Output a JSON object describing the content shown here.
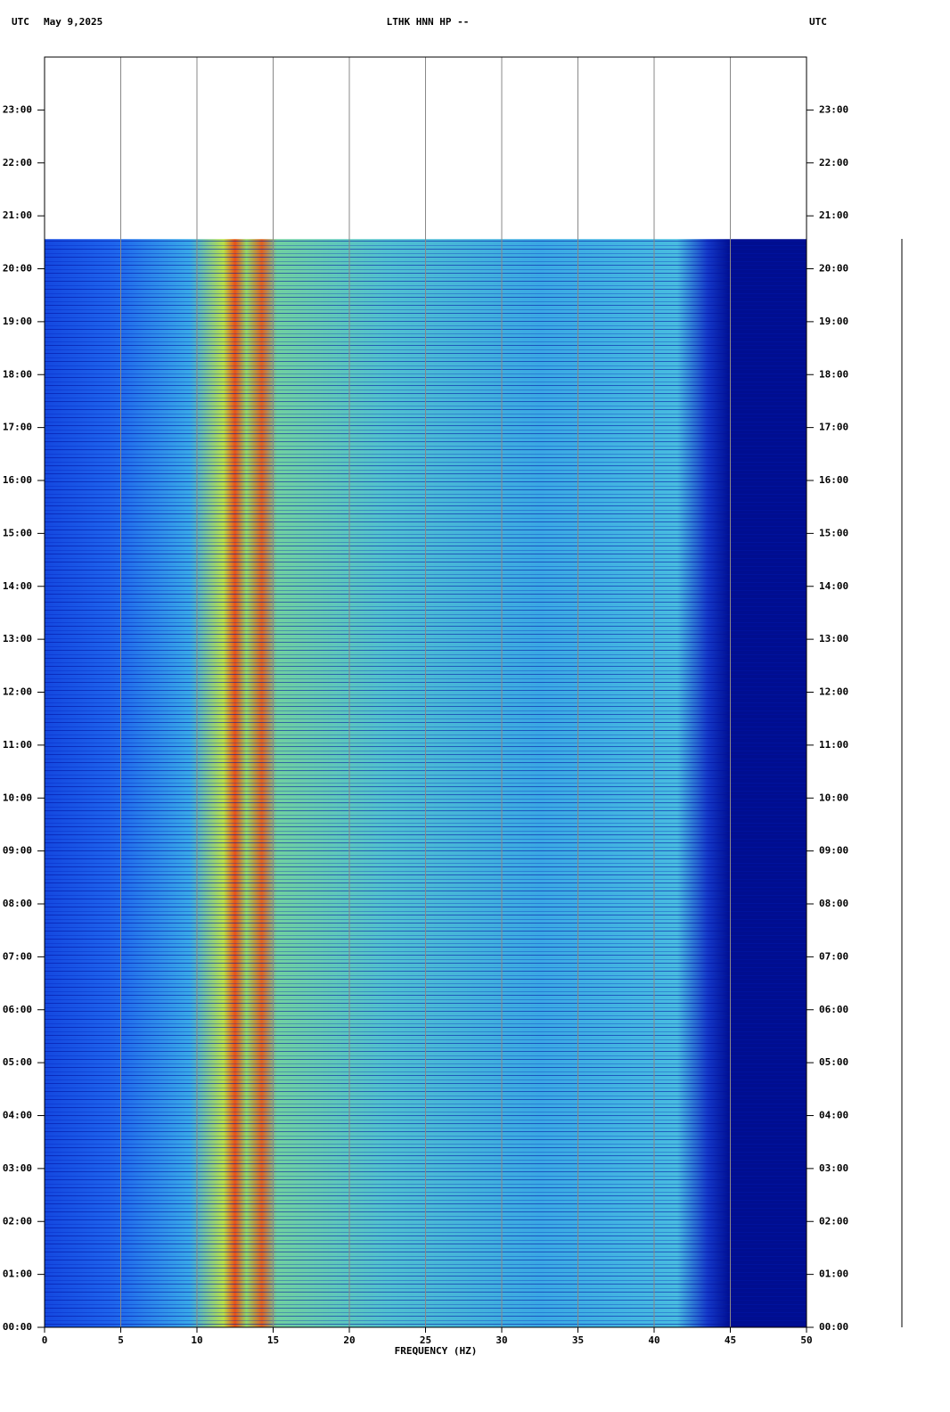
{
  "chart_data": {
    "type": "spectrogram",
    "title": "LTHK HNN HP --",
    "date": "May 9,2025",
    "timezone_left": "UTC",
    "timezone_right": "UTC",
    "xlabel": "FREQUENCY (HZ)",
    "xlim": [
      0,
      50
    ],
    "xticks": [
      0,
      5,
      10,
      15,
      20,
      25,
      30,
      35,
      40,
      45,
      50
    ],
    "ylim": [
      0,
      24
    ],
    "yticks": [
      {
        "value": 0,
        "label": "00:00"
      },
      {
        "value": 1,
        "label": "01:00"
      },
      {
        "value": 2,
        "label": "02:00"
      },
      {
        "value": 3,
        "label": "03:00"
      },
      {
        "value": 4,
        "label": "04:00"
      },
      {
        "value": 5,
        "label": "05:00"
      },
      {
        "value": 6,
        "label": "06:00"
      },
      {
        "value": 7,
        "label": "07:00"
      },
      {
        "value": 8,
        "label": "08:00"
      },
      {
        "value": 9,
        "label": "09:00"
      },
      {
        "value": 10,
        "label": "10:00"
      },
      {
        "value": 11,
        "label": "11:00"
      },
      {
        "value": 12,
        "label": "12:00"
      },
      {
        "value": 13,
        "label": "13:00"
      },
      {
        "value": 14,
        "label": "14:00"
      },
      {
        "value": 15,
        "label": "15:00"
      },
      {
        "value": 16,
        "label": "16:00"
      },
      {
        "value": 17,
        "label": "17:00"
      },
      {
        "value": 18,
        "label": "18:00"
      },
      {
        "value": 19,
        "label": "19:00"
      },
      {
        "value": 20,
        "label": "20:00"
      },
      {
        "value": 21,
        "label": "21:00"
      },
      {
        "value": 22,
        "label": "22:00"
      },
      {
        "value": 23,
        "label": "23:00"
      }
    ],
    "data_end": 20.56,
    "grid": true
  }
}
